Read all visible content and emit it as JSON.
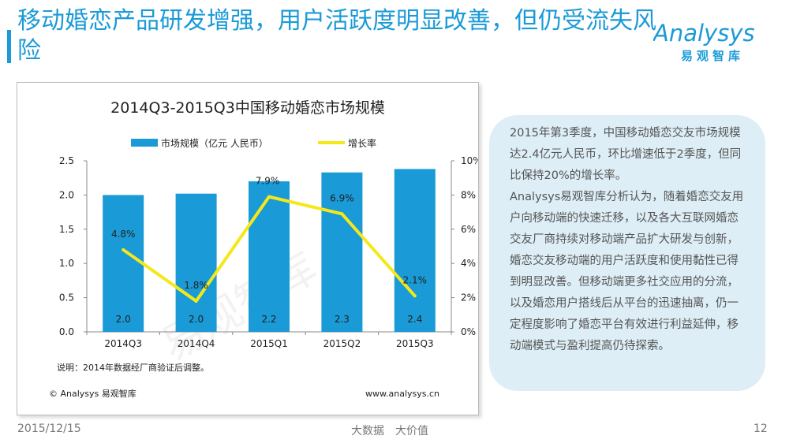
{
  "header": {
    "title": "移动婚恋产品研发增强，用户活跃度明显改善，但仍受流失风险"
  },
  "logo": {
    "word": "Analysys",
    "sub": "易观智库"
  },
  "colors": {
    "accent": "#1a9ad7",
    "bar": "#1a9ad7",
    "line": "#f5e81a"
  },
  "chart_data": {
    "type": "bar",
    "title": "2014Q3-2015Q3中国移动婚恋市场规模",
    "categories": [
      "2014Q3",
      "2014Q4",
      "2015Q1",
      "2015Q2",
      "2015Q3"
    ],
    "series": [
      {
        "name": "市场规模（亿元 人民币）",
        "type": "bar",
        "axis": "left",
        "values": [
          2.0,
          2.02,
          2.2,
          2.33,
          2.38
        ],
        "labels": [
          "2.0",
          "2.0",
          "2.2",
          "2.3",
          "2.4"
        ]
      },
      {
        "name": "增长率",
        "type": "line",
        "axis": "right",
        "values": [
          4.8,
          1.8,
          7.9,
          6.9,
          2.1
        ],
        "labels": [
          "4.8%",
          "1.8%",
          "7.9%",
          "6.9%",
          "2.1%"
        ]
      }
    ],
    "ylim": [
      0,
      2.5
    ],
    "yticks": [
      "0.0",
      "0.5",
      "1.0",
      "1.5",
      "2.0",
      "2.5"
    ],
    "y2lim": [
      0,
      10
    ],
    "y2ticks": [
      "0%",
      "2%",
      "4%",
      "6%",
      "8%",
      "10%"
    ],
    "legend_position": "top",
    "note": "说明：2014年数据经厂商验证后调整。",
    "source": "© Analysys 易观智库",
    "url": "www.analysys.cn",
    "watermark": "易观智库"
  },
  "panel": {
    "paragraphs": [
      "2015年第3季度，中国移动婚恋交友市场规模达2.4亿元人民币，环比增速低于2季度，但同比保持20%的增长率。",
      "Analysys易观智库分析认为，随着婚恋交友用户向移动端的快速迁移，以及各大互联网婚恋交友厂商持续对移动端产品扩大研发与创新，婚恋交友移动端的用户活跃度和使用黏性已得到明显改善。但移动端更多社交应用的分流，以及婚恋用户搭线后从平台的迅速抽离，仍一定程度影响了婚恋平台有效进行利益延伸，移动端模式与盈利提高仍待探索。"
    ]
  },
  "footer": {
    "date": "2015/12/15",
    "slogan1": "大数据",
    "slogan2": "大价值",
    "page": "12"
  }
}
